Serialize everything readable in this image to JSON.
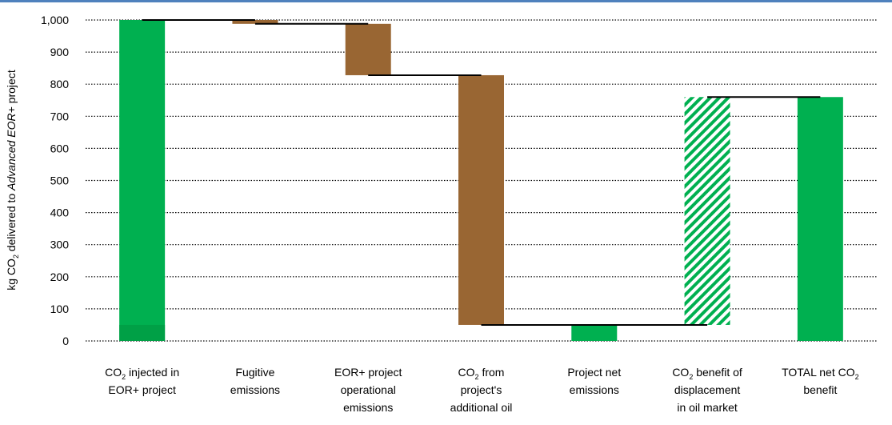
{
  "chart_data": {
    "type": "bar",
    "subtype": "waterfall",
    "ylabel": {
      "pre": "kg CO",
      "sub": "2",
      "mid": " delivered to ",
      "italic": "Advanced EOR+",
      "post": " project"
    },
    "ylim": [
      0,
      1000
    ],
    "yticks": [
      0,
      100,
      200,
      300,
      400,
      500,
      600,
      700,
      800,
      900,
      1000
    ],
    "ytick_labels": [
      "0",
      "100",
      "200",
      "300",
      "400",
      "500",
      "600",
      "700",
      "800",
      "900",
      "1,000"
    ],
    "grid": "horizontal dotted",
    "categories": [
      {
        "lines": [
          [
            {
              "t": "CO"
            },
            {
              "t": "2",
              "sub": true
            },
            {
              "t": " injected in"
            }
          ],
          [
            {
              "t": "EOR+ project"
            }
          ]
        ],
        "text": "CO2 injected in EOR+ project"
      },
      {
        "lines": [
          [
            {
              "t": "Fugitive"
            }
          ],
          [
            {
              "t": "emissions"
            }
          ]
        ],
        "text": "Fugitive emissions"
      },
      {
        "lines": [
          [
            {
              "t": "EOR+ project"
            }
          ],
          [
            {
              "t": "operational"
            }
          ],
          [
            {
              "t": "emissions"
            }
          ]
        ],
        "text": "EOR+ project operational emissions"
      },
      {
        "lines": [
          [
            {
              "t": "CO"
            },
            {
              "t": "2",
              "sub": true
            },
            {
              "t": " from"
            }
          ],
          [
            {
              "t": "project's"
            }
          ],
          [
            {
              "t": "additional oil"
            }
          ]
        ],
        "text": "CO2 from project's additional oil"
      },
      {
        "lines": [
          [
            {
              "t": "Project net"
            }
          ],
          [
            {
              "t": "emissions"
            }
          ]
        ],
        "text": "Project net emissions"
      },
      {
        "lines": [
          [
            {
              "t": "CO"
            },
            {
              "t": "2",
              "sub": true
            },
            {
              "t": " benefit of"
            }
          ],
          [
            {
              "t": "displacement"
            }
          ],
          [
            {
              "t": "in oil market"
            }
          ]
        ],
        "text": "CO2 benefit of displacement in oil market"
      },
      {
        "lines": [
          [
            {
              "t": "TOTAL net CO"
            },
            {
              "t": "2",
              "sub": true
            }
          ],
          [
            {
              "t": "benefit"
            }
          ]
        ],
        "text": "TOTAL net CO2 benefit"
      }
    ],
    "bars": [
      {
        "low": 0,
        "high": 1000,
        "kind": "green",
        "dark_low": 0,
        "dark_high": 50
      },
      {
        "low": 988,
        "high": 1000,
        "kind": "brown"
      },
      {
        "low": 828,
        "high": 988,
        "kind": "brown"
      },
      {
        "low": 50,
        "high": 828,
        "kind": "brown"
      },
      {
        "low": 0,
        "high": 50,
        "kind": "green"
      },
      {
        "low": 50,
        "high": 760,
        "kind": "hatch"
      },
      {
        "low": 0,
        "high": 760,
        "kind": "green"
      }
    ],
    "connectors": [
      {
        "from": 0,
        "to": 1,
        "value": 1000
      },
      {
        "from": 1,
        "to": 2,
        "value": 988
      },
      {
        "from": 2,
        "to": 3,
        "value": 828
      },
      {
        "from": 3,
        "to": 5,
        "value": 50
      },
      {
        "from": 5,
        "to": 6,
        "value": 760
      }
    ],
    "colors": {
      "green": "#00b050",
      "green_dark": "#00a046",
      "brown": "#996633",
      "grid": "#000000",
      "axis": "#d9d9d9",
      "topbar": "#4f81bd"
    }
  }
}
